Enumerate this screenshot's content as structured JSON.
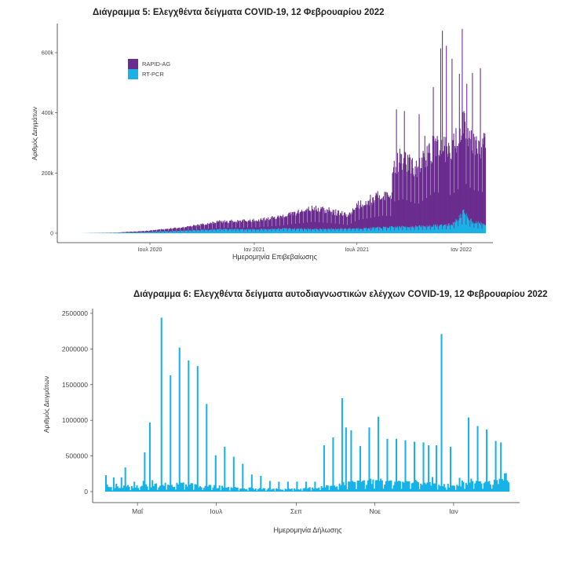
{
  "chart_data": [
    {
      "type": "bar",
      "title": "Διάγραμμα 5: Ελεγχθέντα δείγματα COVID-19, 12 Φεβρουαρίου 2022",
      "xlabel": "Ημερομηνία Επιβεβαίωσης",
      "ylabel": "Αριθμός Δειγμάτων",
      "stacked": true,
      "ylim": [
        0,
        690000
      ],
      "xlim": [
        "2020-02-26",
        "2022-02-12"
      ],
      "yticks": [
        0,
        200000,
        400000,
        600000
      ],
      "ytick_labels": [
        "0",
        "200k",
        "400k",
        "600k"
      ],
      "xticks": [
        "2020-07-01",
        "2021-01-01",
        "2021-07-01",
        "2022-01-01"
      ],
      "xtick_labels": [
        "Ιουλ 2020",
        "Ιαν 2021",
        "Ιουλ 2021",
        "Ιαν 2022"
      ],
      "legend_position": "top-left",
      "grid": false,
      "series": [
        {
          "name": "RAPID-AG",
          "color": "#6a2c8e",
          "anchors": [
            [
              "2020-02-26",
              0
            ],
            [
              "2020-05-01",
              500
            ],
            [
              "2020-07-01",
              5000
            ],
            [
              "2020-09-01",
              12000
            ],
            [
              "2020-11-01",
              25000
            ],
            [
              "2021-01-01",
              30000
            ],
            [
              "2021-02-15",
              40000
            ],
            [
              "2021-03-15",
              55000
            ],
            [
              "2021-04-15",
              70000
            ],
            [
              "2021-05-15",
              60000
            ],
            [
              "2021-06-15",
              45000
            ],
            [
              "2021-07-01",
              80000
            ],
            [
              "2021-07-31",
              100000
            ],
            [
              "2021-08-15",
              110000
            ],
            [
              "2021-08-31",
              105000
            ],
            [
              "2021-09-01",
              210000
            ],
            [
              "2021-09-20",
              230000
            ],
            [
              "2021-10-15",
              190000
            ],
            [
              "2021-11-15",
              280000
            ],
            [
              "2021-12-10",
              250000
            ],
            [
              "2021-12-25",
              270000
            ],
            [
              "2022-01-05",
              310000
            ],
            [
              "2022-01-20",
              280000
            ],
            [
              "2022-02-12",
              270000
            ]
          ],
          "peaks": [
            [
              "2021-09-08",
              390000
            ],
            [
              "2021-09-22",
              385000
            ],
            [
              "2021-10-18",
              370000
            ],
            [
              "2021-10-28",
              300000
            ],
            [
              "2021-11-12",
              460000
            ],
            [
              "2021-11-25",
              585000
            ],
            [
              "2021-11-28",
              660000
            ],
            [
              "2021-12-05",
              610000
            ],
            [
              "2021-12-15",
              550000
            ],
            [
              "2021-12-28",
              470000
            ],
            [
              "2022-01-02",
              650000
            ],
            [
              "2022-01-10",
              430000
            ],
            [
              "2022-01-20",
              500000
            ],
            [
              "2022-02-03",
              510000
            ]
          ]
        },
        {
          "name": "RT-PCR",
          "color": "#1ab1e6",
          "anchors": [
            [
              "2020-02-26",
              0
            ],
            [
              "2020-05-01",
              1500
            ],
            [
              "2020-07-01",
              4000
            ],
            [
              "2020-09-01",
              9000
            ],
            [
              "2020-11-01",
              14000
            ],
            [
              "2021-01-01",
              13000
            ],
            [
              "2021-03-01",
              16000
            ],
            [
              "2021-05-01",
              14000
            ],
            [
              "2021-07-15",
              17000
            ],
            [
              "2021-09-15",
              22000
            ],
            [
              "2021-11-01",
              24000
            ],
            [
              "2021-12-15",
              30000
            ],
            [
              "2022-01-05",
              70000
            ],
            [
              "2022-01-20",
              40000
            ],
            [
              "2022-02-12",
              30000
            ]
          ],
          "peaks": [
            [
              "2022-01-04",
              78000
            ],
            [
              "2022-01-06",
              68000
            ]
          ]
        }
      ]
    },
    {
      "type": "bar",
      "title": "Διάγραμμα 6: Ελεγχθέντα δείγματα αυτοδιαγνωστικών ελέγχων COVID-19, 12 Φεβρουαρίου 2022",
      "xlabel": "Ημερομηνία Δήλωσης",
      "ylabel": "Αριθμός Δειγμάτων",
      "ylim": [
        0,
        2500000
      ],
      "xlim": [
        "2021-04-06",
        "2022-02-12"
      ],
      "yticks": [
        0,
        500000,
        1000000,
        1500000,
        2000000,
        2500000
      ],
      "ytick_labels": [
        "0",
        "500000",
        "1000000",
        "1500000",
        "2000000",
        "2500000"
      ],
      "xticks": [
        "2021-05-01",
        "2021-07-01",
        "2021-09-01",
        "2021-11-01",
        "2022-01-01"
      ],
      "xtick_labels": [
        "Μαΐ",
        "Ιουλ",
        "Σεπ",
        "Νοε",
        "Ιαν"
      ],
      "grid": false,
      "series": [
        {
          "name": "",
          "color": "#17b2e7",
          "anchors": [
            [
              "2021-04-06",
              60000
            ],
            [
              "2021-05-01",
              90000
            ],
            [
              "2021-06-01",
              120000
            ],
            [
              "2021-07-01",
              80000
            ],
            [
              "2021-08-01",
              45000
            ],
            [
              "2021-09-01",
              40000
            ],
            [
              "2021-10-01",
              110000
            ],
            [
              "2021-11-01",
              170000
            ],
            [
              "2021-12-01",
              150000
            ],
            [
              "2021-12-20",
              120000
            ],
            [
              "2022-01-01",
              90000
            ],
            [
              "2022-01-10",
              160000
            ],
            [
              "2022-02-12",
              160000
            ]
          ],
          "peaks": [
            [
              "2021-04-06",
              230000
            ],
            [
              "2021-04-12",
              200000
            ],
            [
              "2021-04-18",
              200000
            ],
            [
              "2021-04-21",
              340000
            ],
            [
              "2021-05-06",
              550000
            ],
            [
              "2021-05-10",
              970000
            ],
            [
              "2021-05-19",
              2440000
            ],
            [
              "2021-05-26",
              1630000
            ],
            [
              "2021-06-02",
              2020000
            ],
            [
              "2021-06-09",
              1840000
            ],
            [
              "2021-06-16",
              1760000
            ],
            [
              "2021-06-23",
              1230000
            ],
            [
              "2021-06-30",
              510000
            ],
            [
              "2021-07-07",
              630000
            ],
            [
              "2021-07-14",
              490000
            ],
            [
              "2021-07-21",
              390000
            ],
            [
              "2021-07-28",
              240000
            ],
            [
              "2021-08-04",
              220000
            ],
            [
              "2021-08-11",
              150000
            ],
            [
              "2021-08-18",
              140000
            ],
            [
              "2021-08-25",
              140000
            ],
            [
              "2021-09-01",
              140000
            ],
            [
              "2021-09-08",
              140000
            ],
            [
              "2021-09-15",
              140000
            ],
            [
              "2021-09-22",
              650000
            ],
            [
              "2021-09-29",
              760000
            ],
            [
              "2021-10-06",
              1310000
            ],
            [
              "2021-10-09",
              900000
            ],
            [
              "2021-10-13",
              860000
            ],
            [
              "2021-10-20",
              640000
            ],
            [
              "2021-10-27",
              900000
            ],
            [
              "2021-11-03",
              1050000
            ],
            [
              "2021-11-10",
              740000
            ],
            [
              "2021-11-17",
              740000
            ],
            [
              "2021-11-24",
              720000
            ],
            [
              "2021-12-01",
              700000
            ],
            [
              "2021-12-08",
              690000
            ],
            [
              "2021-12-12",
              650000
            ],
            [
              "2021-12-18",
              650000
            ],
            [
              "2021-12-22",
              2210000
            ],
            [
              "2021-12-29",
              630000
            ],
            [
              "2022-01-12",
              1040000
            ],
            [
              "2022-01-19",
              920000
            ],
            [
              "2022-01-26",
              870000
            ],
            [
              "2022-02-02",
              710000
            ],
            [
              "2022-02-06",
              690000
            ],
            [
              "2022-02-10",
              260000
            ]
          ]
        }
      ]
    }
  ]
}
